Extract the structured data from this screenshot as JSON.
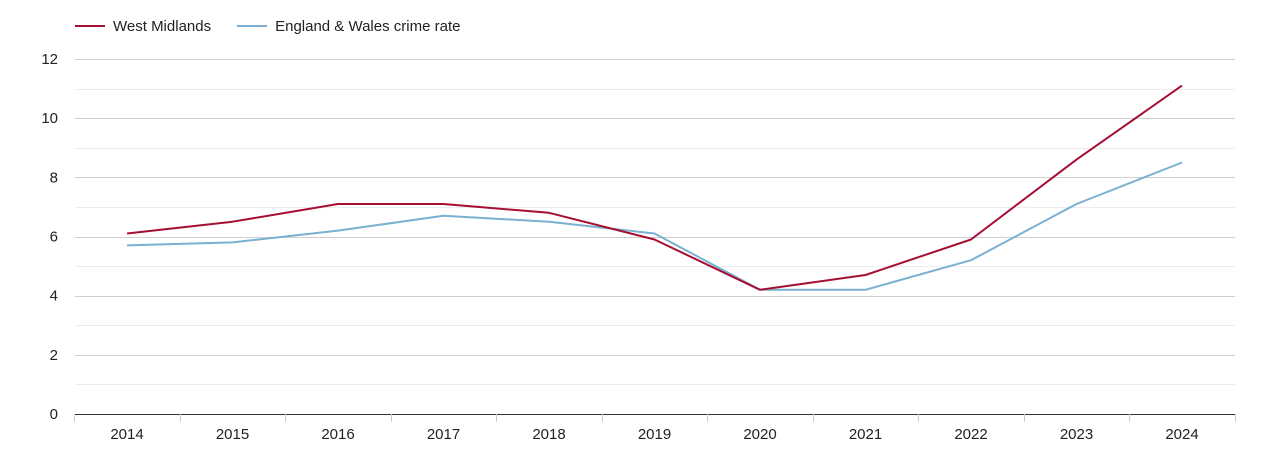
{
  "chart_data": {
    "type": "line",
    "title": "",
    "xlabel": "",
    "ylabel": "",
    "categories": [
      "2014",
      "2015",
      "2016",
      "2017",
      "2018",
      "2019",
      "2020",
      "2021",
      "2022",
      "2023",
      "2024"
    ],
    "ylim": [
      0,
      12
    ],
    "yticks": [
      0,
      2,
      4,
      6,
      8,
      10,
      12
    ],
    "grid": true,
    "legend_position": "top-left",
    "series": [
      {
        "name": "West Midlands",
        "color": "#a50f32",
        "values": [
          6.1,
          6.5,
          7.1,
          7.1,
          6.8,
          5.9,
          4.2,
          4.7,
          5.9,
          8.6,
          11.1
        ]
      },
      {
        "name": "England & Wales crime rate",
        "color": "#7ab0d0",
        "values": [
          5.7,
          5.8,
          6.2,
          6.7,
          6.5,
          6.1,
          4.2,
          4.2,
          5.2,
          7.1,
          8.5
        ]
      }
    ]
  }
}
